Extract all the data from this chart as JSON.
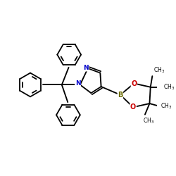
{
  "bg_color": "#ffffff",
  "C_color": "#000000",
  "N_color": "#0000cc",
  "B_color": "#6b6b00",
  "O_color": "#cc0000",
  "figsize": [
    2.5,
    2.5
  ],
  "dpi": 100,
  "xlim": [
    -1.55,
    1.85
  ],
  "ylim": [
    -1.45,
    1.35
  ]
}
